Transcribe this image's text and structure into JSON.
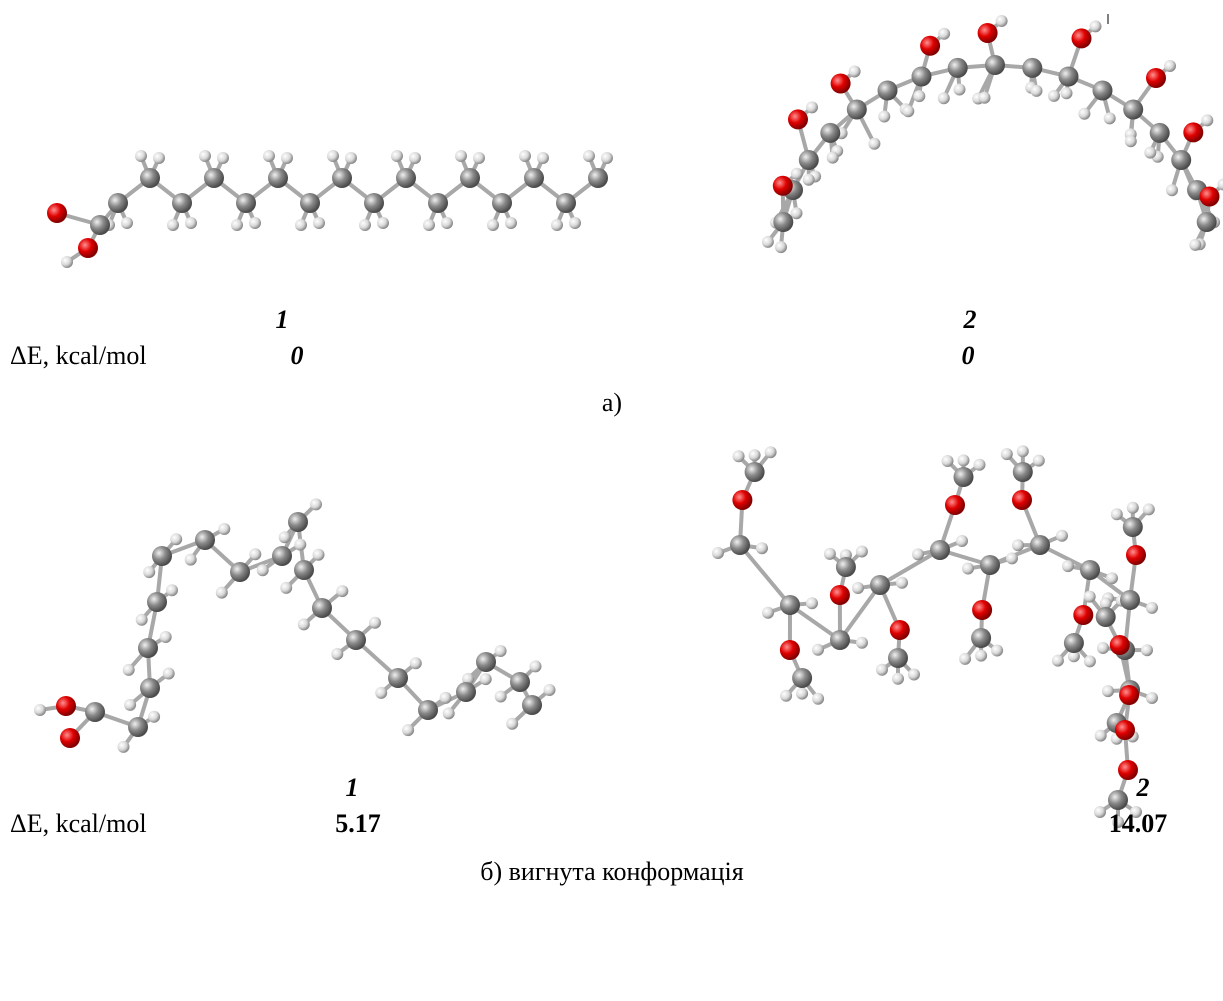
{
  "panel_a": {
    "molecule_labels": [
      "1",
      "2"
    ],
    "energy_label": "ΔE, kcal/mol",
    "energies": [
      "0",
      "0"
    ],
    "caption": "а)"
  },
  "panel_b": {
    "molecule_labels": [
      "1",
      "2"
    ],
    "energy_label": "ΔE, kcal/mol",
    "energies": [
      "5.17",
      "14.07"
    ],
    "caption": "б) вигнута конформація"
  }
}
